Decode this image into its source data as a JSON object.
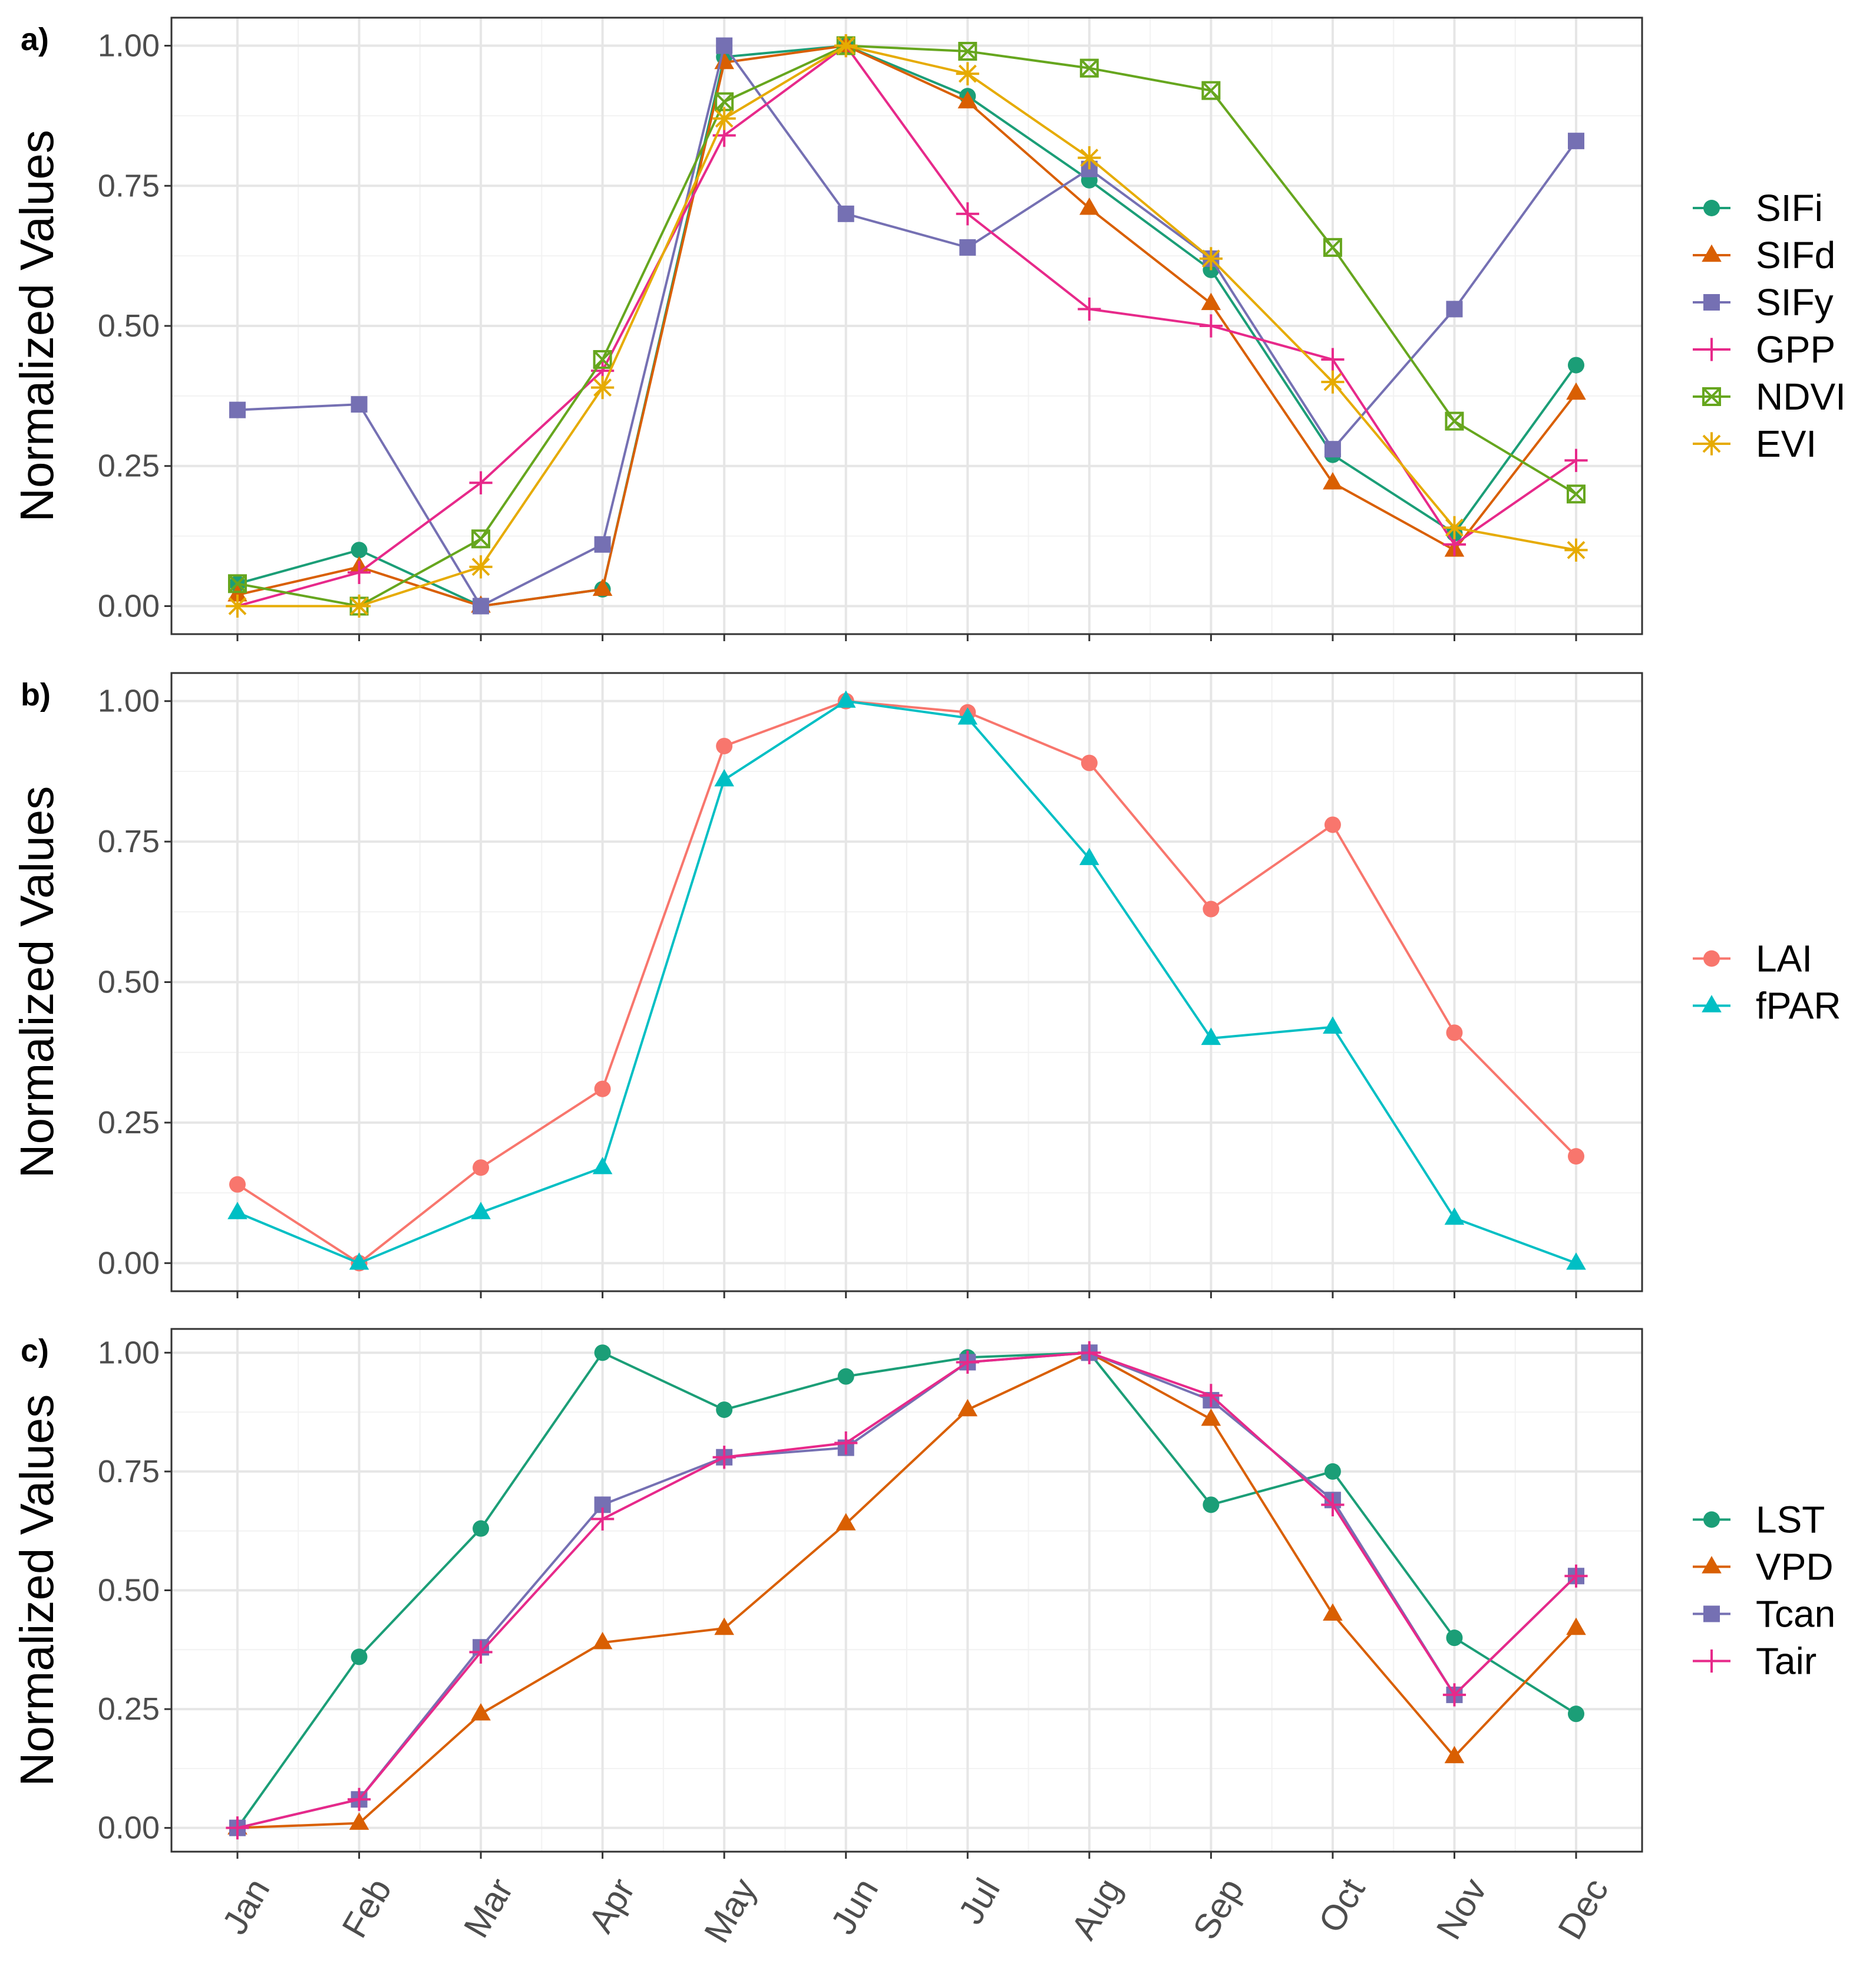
{
  "chart_data": [
    {
      "type": "line",
      "panel_label": "a)",
      "ylabel": "Normalized Values",
      "xlabel": "",
      "ylim": [
        -0.05,
        1.05
      ],
      "yticks": [
        "0.00",
        "0.25",
        "0.50",
        "0.75",
        "1.00"
      ],
      "ytick_values": [
        0,
        0.25,
        0.5,
        0.75,
        1
      ],
      "categories": [
        "Jan",
        "Feb",
        "Mar",
        "Apr",
        "May",
        "Jun",
        "Jul",
        "Aug",
        "Sep",
        "Oct",
        "Nov",
        "Dec"
      ],
      "show_x_labels": false,
      "grid": true,
      "legend_position": "right",
      "series": [
        {
          "name": "SIFi",
          "color": "#1b9e77",
          "marker": "circle",
          "values": [
            0.04,
            0.1,
            0.0,
            0.03,
            0.98,
            1.0,
            0.91,
            0.76,
            0.6,
            0.27,
            0.13,
            0.43
          ]
        },
        {
          "name": "SIFd",
          "color": "#d95f02",
          "marker": "triangle",
          "values": [
            0.02,
            0.07,
            0.0,
            0.03,
            0.97,
            1.0,
            0.9,
            0.71,
            0.54,
            0.22,
            0.1,
            0.38
          ]
        },
        {
          "name": "SIFy",
          "color": "#7570b3",
          "marker": "square",
          "values": [
            0.35,
            0.36,
            0.0,
            0.11,
            1.0,
            0.7,
            0.64,
            0.78,
            0.62,
            0.28,
            0.53,
            0.83
          ]
        },
        {
          "name": "GPP",
          "color": "#e7298a",
          "marker": "plus",
          "values": [
            0.0,
            0.06,
            0.22,
            0.42,
            0.84,
            1.0,
            0.7,
            0.53,
            0.5,
            0.44,
            0.11,
            0.26
          ]
        },
        {
          "name": "NDVI",
          "color": "#66a61e",
          "marker": "square-cross",
          "values": [
            0.04,
            0.0,
            0.12,
            0.44,
            0.9,
            1.0,
            0.99,
            0.96,
            0.92,
            0.64,
            0.33,
            0.2
          ]
        },
        {
          "name": "EVI",
          "color": "#e6ab02",
          "marker": "asterisk",
          "values": [
            0.0,
            0.0,
            0.07,
            0.39,
            0.87,
            1.0,
            0.95,
            0.8,
            0.62,
            0.4,
            0.14,
            0.1
          ]
        }
      ]
    },
    {
      "type": "line",
      "panel_label": "b)",
      "ylabel": "Normalized Values",
      "xlabel": "",
      "ylim": [
        -0.05,
        1.05
      ],
      "yticks": [
        "0.00",
        "0.25",
        "0.50",
        "0.75",
        "1.00"
      ],
      "ytick_values": [
        0,
        0.25,
        0.5,
        0.75,
        1
      ],
      "categories": [
        "Jan",
        "Feb",
        "Mar",
        "Apr",
        "May",
        "Jun",
        "Jul",
        "Aug",
        "Sep",
        "Oct",
        "Nov",
        "Dec"
      ],
      "show_x_labels": false,
      "grid": true,
      "legend_position": "right",
      "series": [
        {
          "name": "LAI",
          "color": "#f8766d",
          "marker": "circle",
          "values": [
            0.14,
            0.0,
            0.17,
            0.31,
            0.92,
            1.0,
            0.98,
            0.89,
            0.63,
            0.78,
            0.41,
            0.19
          ]
        },
        {
          "name": "fPAR",
          "color": "#00bfc4",
          "marker": "triangle",
          "values": [
            0.09,
            0.0,
            0.09,
            0.17,
            0.86,
            1.0,
            0.97,
            0.72,
            0.4,
            0.42,
            0.08,
            0.0
          ]
        }
      ]
    },
    {
      "type": "line",
      "panel_label": "c)",
      "ylabel": "Normalized Values",
      "xlabel": "",
      "ylim": [
        -0.05,
        1.05
      ],
      "yticks": [
        "0.00",
        "0.25",
        "0.50",
        "0.75",
        "1.00"
      ],
      "ytick_values": [
        0,
        0.25,
        0.5,
        0.75,
        1
      ],
      "categories": [
        "Jan",
        "Feb",
        "Mar",
        "Apr",
        "May",
        "Jun",
        "Jul",
        "Aug",
        "Sep",
        "Oct",
        "Nov",
        "Dec"
      ],
      "show_x_labels": true,
      "grid": true,
      "legend_position": "right",
      "series": [
        {
          "name": "LST",
          "color": "#1b9e77",
          "marker": "circle",
          "values": [
            0.0,
            0.36,
            0.63,
            1.0,
            0.88,
            0.95,
            0.99,
            1.0,
            0.68,
            0.75,
            0.4,
            0.24
          ]
        },
        {
          "name": "VPD",
          "color": "#d95f02",
          "marker": "triangle",
          "values": [
            0.0,
            0.01,
            0.24,
            0.39,
            0.42,
            0.64,
            0.88,
            1.0,
            0.86,
            0.45,
            0.15,
            0.42
          ]
        },
        {
          "name": "Tcan",
          "color": "#7570b3",
          "marker": "square",
          "values": [
            0.0,
            0.06,
            0.38,
            0.68,
            0.78,
            0.8,
            0.98,
            1.0,
            0.9,
            0.69,
            0.28,
            0.53
          ]
        },
        {
          "name": "Tair",
          "color": "#e7298a",
          "marker": "plus",
          "values": [
            0.0,
            0.06,
            0.37,
            0.65,
            0.78,
            0.81,
            0.98,
            1.0,
            0.91,
            0.68,
            0.28,
            0.53
          ]
        }
      ]
    }
  ]
}
